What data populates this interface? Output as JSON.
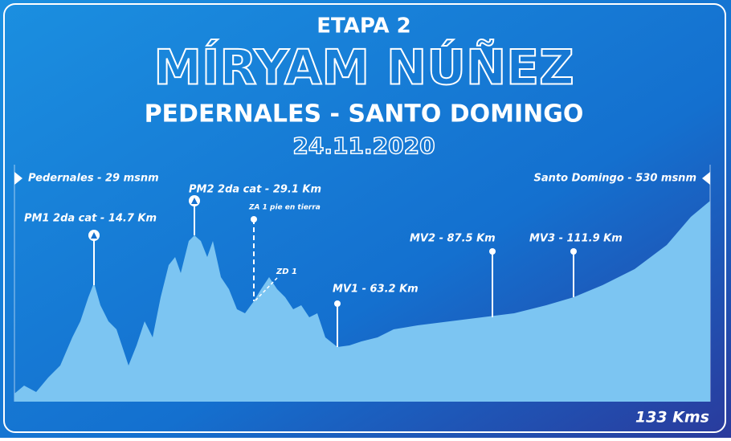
{
  "header": {
    "stage": "ETAPA 2",
    "name": "MÍRYAM NÚÑEZ",
    "route": "PEDERNALES - SANTO DOMINGO",
    "date": "24.11.2020"
  },
  "start": "Pedernales - 29 msnm",
  "finish": "Santo Domingo - 530 msnm",
  "points": [
    {
      "label": "PM1 2da cat - 14.7 Km"
    },
    {
      "label": "PM2 2da cat - 29.1  Km"
    },
    {
      "label": "ZA 1 pie en tierra"
    },
    {
      "label": "ZD 1"
    },
    {
      "label": "MV1 - 63.2 Km"
    },
    {
      "label": "MV2 - 87.5 Km"
    },
    {
      "label": "MV3 - 111.9 Km"
    }
  ],
  "distance": "133 Kms"
}
